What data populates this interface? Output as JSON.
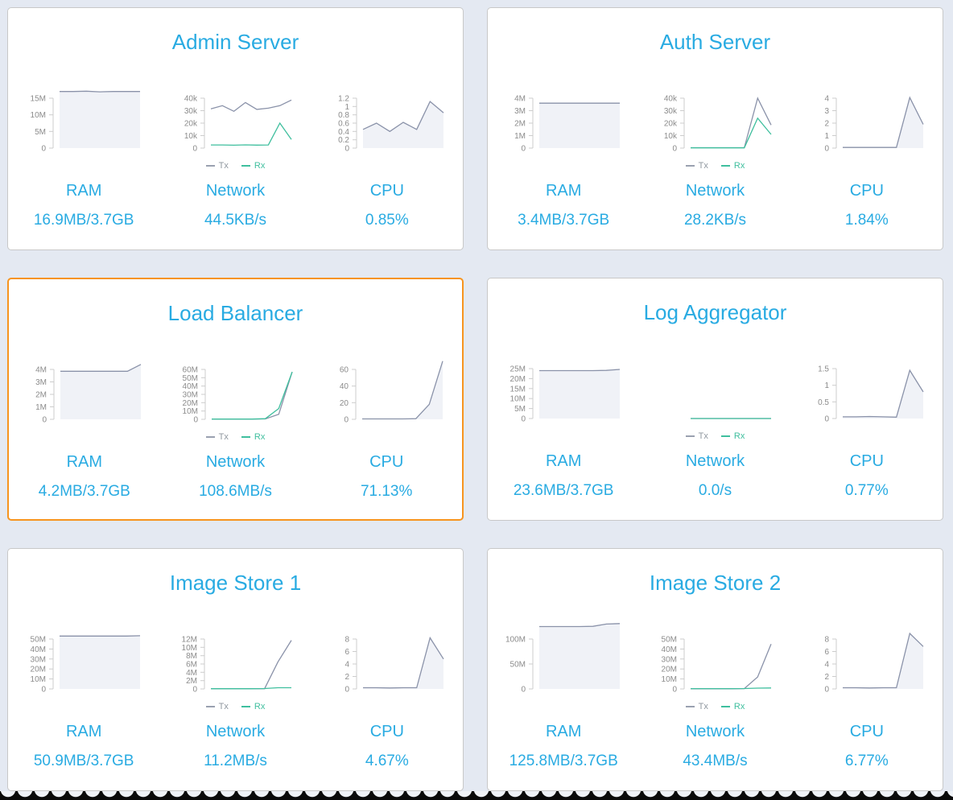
{
  "theme": {
    "background": "#e4e9f2",
    "card_border": "#c8c8c8",
    "selected_border": "#f7941e",
    "accent": "#29abe2",
    "axis_color": "#cccccc",
    "tick_color": "#8b8b8b",
    "area_fill": "#f0f2f7",
    "series_colors": {
      "gray": "#8a92a9",
      "green": "#3fbf9e"
    }
  },
  "legend": {
    "tx": "Tx",
    "rx": "Rx"
  },
  "cards": [
    {
      "title": "Admin Server",
      "selected": false,
      "metrics": [
        {
          "label": "RAM",
          "value": "16.9MB/3.7GB",
          "chart": {
            "kind": "area",
            "max": 15,
            "ticks": [
              [
                0,
                "0"
              ],
              [
                5,
                "5M"
              ],
              [
                10,
                "10M"
              ],
              [
                15,
                "15M"
              ]
            ],
            "series": [
              {
                "name": "mem",
                "color": "gray",
                "fill": true,
                "values": [
                  17,
                  17,
                  17.1,
                  16.9,
                  17,
                  17,
                  17
                ]
              }
            ]
          }
        },
        {
          "label": "Network",
          "value": "44.5KB/s",
          "chart": {
            "kind": "line",
            "max": 40,
            "ticks": [
              [
                0,
                "0"
              ],
              [
                10,
                "10k"
              ],
              [
                20,
                "20k"
              ],
              [
                30,
                "30k"
              ],
              [
                40,
                "40k"
              ]
            ],
            "series": [
              {
                "name": "Tx",
                "color": "gray",
                "values": [
                  31.5,
                  34,
                  29.5,
                  36.5,
                  31,
                  32,
                  34,
                  38.5
                ]
              },
              {
                "name": "Rx",
                "color": "green",
                "values": [
                  2.5,
                  2.5,
                  2.3,
                  2.6,
                  2.4,
                  2.5,
                  20,
                  7
                ]
              }
            ]
          }
        },
        {
          "label": "CPU",
          "value": "0.85%",
          "chart": {
            "kind": "area",
            "max": 1.2,
            "ticks": [
              [
                0,
                "0"
              ],
              [
                0.2,
                "0.2"
              ],
              [
                0.4,
                "0.4"
              ],
              [
                0.6,
                "0.6"
              ],
              [
                0.8,
                "0.8"
              ],
              [
                1,
                "1"
              ],
              [
                1.2,
                "1.2"
              ]
            ],
            "series": [
              {
                "name": "cpu",
                "color": "gray",
                "fill": true,
                "values": [
                  0.45,
                  0.6,
                  0.4,
                  0.62,
                  0.45,
                  1.12,
                  0.85
                ]
              }
            ]
          }
        }
      ]
    },
    {
      "title": "Auth Server",
      "selected": false,
      "metrics": [
        {
          "label": "RAM",
          "value": "3.4MB/3.7GB",
          "chart": {
            "kind": "area",
            "max": 4,
            "ticks": [
              [
                0,
                "0"
              ],
              [
                1,
                "1M"
              ],
              [
                2,
                "2M"
              ],
              [
                3,
                "3M"
              ],
              [
                4,
                "4M"
              ]
            ],
            "series": [
              {
                "name": "mem",
                "color": "gray",
                "fill": true,
                "values": [
                  3.6,
                  3.6,
                  3.6,
                  3.6,
                  3.6,
                  3.6,
                  3.6
                ]
              }
            ]
          }
        },
        {
          "label": "Network",
          "value": "28.2KB/s",
          "chart": {
            "kind": "line",
            "max": 40,
            "ticks": [
              [
                0,
                "0"
              ],
              [
                10,
                "10k"
              ],
              [
                20,
                "20k"
              ],
              [
                30,
                "30k"
              ],
              [
                40,
                "40k"
              ]
            ],
            "series": [
              {
                "name": "Tx",
                "color": "gray",
                "values": [
                  0.3,
                  0.3,
                  0.3,
                  0.3,
                  0.3,
                  40,
                  18.5
                ]
              },
              {
                "name": "Rx",
                "color": "green",
                "values": [
                  0.2,
                  0.2,
                  0.2,
                  0.2,
                  0.2,
                  24,
                  11
                ]
              }
            ]
          }
        },
        {
          "label": "CPU",
          "value": "1.84%",
          "chart": {
            "kind": "area",
            "max": 4,
            "ticks": [
              [
                0,
                "0"
              ],
              [
                1,
                "1"
              ],
              [
                2,
                "2"
              ],
              [
                3,
                "3"
              ],
              [
                4,
                "4"
              ]
            ],
            "series": [
              {
                "name": "cpu",
                "color": "gray",
                "fill": true,
                "values": [
                  0.05,
                  0.05,
                  0.05,
                  0.05,
                  0.05,
                  4.05,
                  1.9
                ]
              }
            ]
          }
        }
      ]
    },
    {
      "title": "Load Balancer",
      "selected": true,
      "metrics": [
        {
          "label": "RAM",
          "value": "4.2MB/3.7GB",
          "chart": {
            "kind": "area",
            "max": 4,
            "ticks": [
              [
                0,
                "0"
              ],
              [
                1,
                "1M"
              ],
              [
                2,
                "2M"
              ],
              [
                3,
                "3M"
              ],
              [
                4,
                "4M"
              ]
            ],
            "series": [
              {
                "name": "mem",
                "color": "gray",
                "fill": true,
                "values": [
                  3.85,
                  3.85,
                  3.85,
                  3.85,
                  3.85,
                  3.85,
                  4.4
                ]
              }
            ]
          }
        },
        {
          "label": "Network",
          "value": "108.6MB/s",
          "chart": {
            "kind": "line",
            "max": 60,
            "ticks": [
              [
                0,
                "0"
              ],
              [
                10,
                "10M"
              ],
              [
                20,
                "20M"
              ],
              [
                30,
                "30M"
              ],
              [
                40,
                "40M"
              ],
              [
                50,
                "50M"
              ],
              [
                60,
                "60M"
              ]
            ],
            "series": [
              {
                "name": "Tx",
                "color": "gray",
                "values": [
                  0.3,
                  0.3,
                  0.3,
                  0.3,
                  0.5,
                  6,
                  57
                ]
              },
              {
                "name": "Rx",
                "color": "green",
                "values": [
                  0.3,
                  0.3,
                  0.3,
                  0.3,
                  0.8,
                  13,
                  57
                ]
              }
            ]
          }
        },
        {
          "label": "CPU",
          "value": "71.13%",
          "chart": {
            "kind": "area",
            "max": 60,
            "ticks": [
              [
                0,
                "0"
              ],
              [
                20,
                "20"
              ],
              [
                40,
                "40"
              ],
              [
                60,
                "60"
              ]
            ],
            "series": [
              {
                "name": "cpu",
                "color": "gray",
                "fill": true,
                "values": [
                  0.5,
                  0.5,
                  0.5,
                  0.5,
                  0.8,
                  18,
                  70
                ]
              }
            ]
          }
        }
      ]
    },
    {
      "title": "Log Aggregator",
      "selected": false,
      "metrics": [
        {
          "label": "RAM",
          "value": "23.6MB/3.7GB",
          "chart": {
            "kind": "area",
            "max": 25,
            "ticks": [
              [
                0,
                "0"
              ],
              [
                5,
                "5M"
              ],
              [
                10,
                "10M"
              ],
              [
                15,
                "15M"
              ],
              [
                20,
                "20M"
              ],
              [
                25,
                "25M"
              ]
            ],
            "series": [
              {
                "name": "mem",
                "color": "gray",
                "fill": true,
                "values": [
                  24,
                  24,
                  24,
                  24,
                  24,
                  24.1,
                  24.6
                ]
              }
            ]
          }
        },
        {
          "label": "Network",
          "value": "0.0/s",
          "chart": {
            "kind": "line",
            "max": 1,
            "ticks": [],
            "series": [
              {
                "name": "Tx",
                "color": "gray",
                "values": [
                  0,
                  0,
                  0,
                  0,
                  0,
                  0,
                  0
                ]
              },
              {
                "name": "Rx",
                "color": "green",
                "values": [
                  0,
                  0,
                  0,
                  0,
                  0,
                  0,
                  0
                ]
              }
            ]
          }
        },
        {
          "label": "CPU",
          "value": "0.77%",
          "chart": {
            "kind": "area",
            "max": 1.5,
            "ticks": [
              [
                0,
                "0"
              ],
              [
                0.5,
                "0.5"
              ],
              [
                1,
                "1"
              ],
              [
                1.5,
                "1.5"
              ]
            ],
            "series": [
              {
                "name": "cpu",
                "color": "gray",
                "fill": true,
                "values": [
                  0.05,
                  0.05,
                  0.06,
                  0.05,
                  0.04,
                  1.45,
                  0.8
                ]
              }
            ]
          }
        }
      ]
    },
    {
      "title": "Image Store 1",
      "selected": false,
      "metrics": [
        {
          "label": "RAM",
          "value": "50.9MB/3.7GB",
          "chart": {
            "kind": "area",
            "max": 50,
            "ticks": [
              [
                0,
                "0"
              ],
              [
                10,
                "10M"
              ],
              [
                20,
                "20M"
              ],
              [
                30,
                "30M"
              ],
              [
                40,
                "40M"
              ],
              [
                50,
                "50M"
              ]
            ],
            "series": [
              {
                "name": "mem",
                "color": "gray",
                "fill": true,
                "values": [
                  53,
                  53,
                  53,
                  53,
                  53,
                  53,
                  53.3
                ]
              }
            ]
          }
        },
        {
          "label": "Network",
          "value": "11.2MB/s",
          "chart": {
            "kind": "line",
            "max": 12,
            "ticks": [
              [
                0,
                "0"
              ],
              [
                2,
                "2M"
              ],
              [
                4,
                "4M"
              ],
              [
                6,
                "6M"
              ],
              [
                8,
                "8M"
              ],
              [
                10,
                "10M"
              ],
              [
                12,
                "12M"
              ]
            ],
            "series": [
              {
                "name": "Tx",
                "color": "gray",
                "values": [
                  0.05,
                  0.05,
                  0.05,
                  0.05,
                  0.05,
                  6.5,
                  11.7
                ]
              },
              {
                "name": "Rx",
                "color": "green",
                "values": [
                  0.05,
                  0.05,
                  0.05,
                  0.05,
                  0.1,
                  0.3,
                  0.3
                ]
              }
            ]
          }
        },
        {
          "label": "CPU",
          "value": "4.67%",
          "chart": {
            "kind": "area",
            "max": 8,
            "ticks": [
              [
                0,
                "0"
              ],
              [
                2,
                "2"
              ],
              [
                4,
                "4"
              ],
              [
                6,
                "6"
              ],
              [
                8,
                "8"
              ]
            ],
            "series": [
              {
                "name": "cpu",
                "color": "gray",
                "fill": true,
                "values": [
                  0.2,
                  0.2,
                  0.15,
                  0.2,
                  0.2,
                  8.2,
                  4.8
                ]
              }
            ]
          }
        }
      ]
    },
    {
      "title": "Image Store 2",
      "selected": false,
      "metrics": [
        {
          "label": "RAM",
          "value": "125.8MB/3.7GB",
          "chart": {
            "kind": "area",
            "max": 100,
            "ticks": [
              [
                0,
                "0"
              ],
              [
                50,
                "50M"
              ],
              [
                100,
                "100M"
              ]
            ],
            "series": [
              {
                "name": "mem",
                "color": "gray",
                "fill": true,
                "values": [
                  125,
                  125,
                  125,
                  125,
                  125.5,
                  130,
                  131
                ]
              }
            ]
          }
        },
        {
          "label": "Network",
          "value": "43.4MB/s",
          "chart": {
            "kind": "line",
            "max": 50,
            "ticks": [
              [
                0,
                "0"
              ],
              [
                10,
                "10M"
              ],
              [
                20,
                "20M"
              ],
              [
                30,
                "30M"
              ],
              [
                40,
                "40M"
              ],
              [
                50,
                "50M"
              ]
            ],
            "series": [
              {
                "name": "Tx",
                "color": "gray",
                "values": [
                  0.2,
                  0.2,
                  0.2,
                  0.2,
                  0.3,
                  12,
                  45
                ]
              },
              {
                "name": "Rx",
                "color": "green",
                "values": [
                  0.3,
                  0.3,
                  0.3,
                  0.3,
                  0.4,
                  0.8,
                  1
                ]
              }
            ]
          }
        },
        {
          "label": "CPU",
          "value": "6.77%",
          "chart": {
            "kind": "area",
            "max": 8,
            "ticks": [
              [
                0,
                "0"
              ],
              [
                2,
                "2"
              ],
              [
                4,
                "4"
              ],
              [
                6,
                "6"
              ],
              [
                8,
                "8"
              ]
            ],
            "series": [
              {
                "name": "cpu",
                "color": "gray",
                "fill": true,
                "values": [
                  0.2,
                  0.2,
                  0.15,
                  0.2,
                  0.2,
                  8.9,
                  6.8
                ]
              }
            ]
          }
        }
      ]
    }
  ]
}
